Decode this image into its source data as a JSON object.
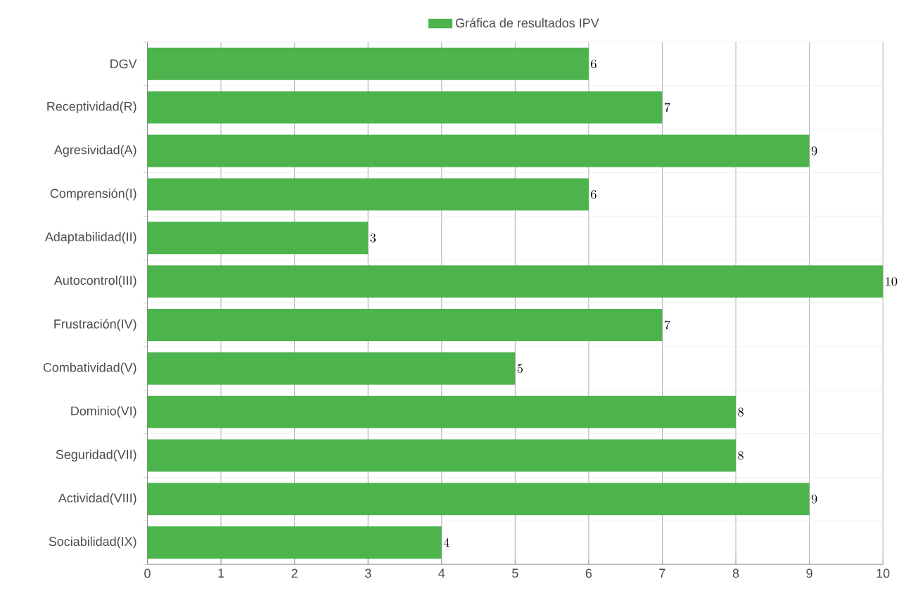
{
  "chart_data": {
    "type": "bar",
    "orientation": "horizontal",
    "categories": [
      "DGV",
      "Receptividad(R)",
      "Agresividad(A)",
      "Comprensión(I)",
      "Adaptabilidad(II)",
      "Autocontrol(III)",
      "Frustración(IV)",
      "Combatividad(V)",
      "Dominio(VI)",
      "Seguridad(VII)",
      "Actividad(VIII)",
      "Sociabilidad(IX)"
    ],
    "series": [
      {
        "name": "Gráfica de resultados IPV",
        "color": "#4db34d",
        "values": [
          6,
          7,
          9,
          6,
          3,
          10,
          7,
          5,
          8,
          8,
          9,
          4
        ]
      }
    ],
    "xlim": [
      0,
      10
    ],
    "xticks": [
      0,
      1,
      2,
      3,
      4,
      5,
      6,
      7,
      8,
      9,
      10
    ],
    "grid": true,
    "legend": "top",
    "data_labels": true
  }
}
